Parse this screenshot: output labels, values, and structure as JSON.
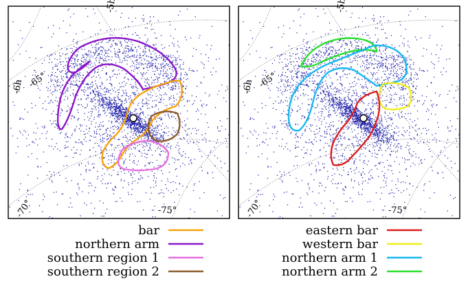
{
  "panels": [
    {
      "id": "left",
      "labels": {
        "top": "-5h",
        "left_mid": "-65°",
        "left_side": "-6h",
        "bottom_left": "-70°",
        "bottom_right": "-75°"
      },
      "regions": [
        {
          "name": "bar",
          "color": "#f5a30a"
        },
        {
          "name": "northern arm",
          "color": "#8b17c8"
        },
        {
          "name": "southern region 1",
          "color": "#e86fe0"
        },
        {
          "name": "southern region 2",
          "color": "#8b5a2b"
        }
      ]
    },
    {
      "id": "right",
      "labels": {
        "top": "-5h",
        "left_mid": "-65°",
        "left_side": "-6h",
        "bottom_left": "-70°",
        "bottom_right": "-75°"
      },
      "regions": [
        {
          "name": "eastern bar",
          "color": "#dd1c1c"
        },
        {
          "name": "western bar",
          "color": "#f2ee1a"
        },
        {
          "name": "northern arm 1",
          "color": "#16b8f0"
        },
        {
          "name": "northern arm 2",
          "color": "#27e02a"
        }
      ]
    }
  ],
  "legend_left": [
    {
      "label": "bar",
      "color": "#f5a30a"
    },
    {
      "label": "northern arm",
      "color": "#8b17c8"
    },
    {
      "label": "southern region 1",
      "color": "#e86fe0"
    },
    {
      "label": "southern region 2",
      "color": "#8b5a2b"
    }
  ],
  "legend_right": [
    {
      "label": "eastern bar",
      "color": "#dd1c1c"
    },
    {
      "label": "western bar",
      "color": "#f2ee1a"
    },
    {
      "label": "northern arm 1",
      "color": "#16b8f0"
    },
    {
      "label": "northern arm 2",
      "color": "#27e02a"
    }
  ],
  "colors": {
    "star": "#1a1aa8",
    "grid": "#888888",
    "frame": "#000000",
    "center_marker": "#ffffff"
  }
}
